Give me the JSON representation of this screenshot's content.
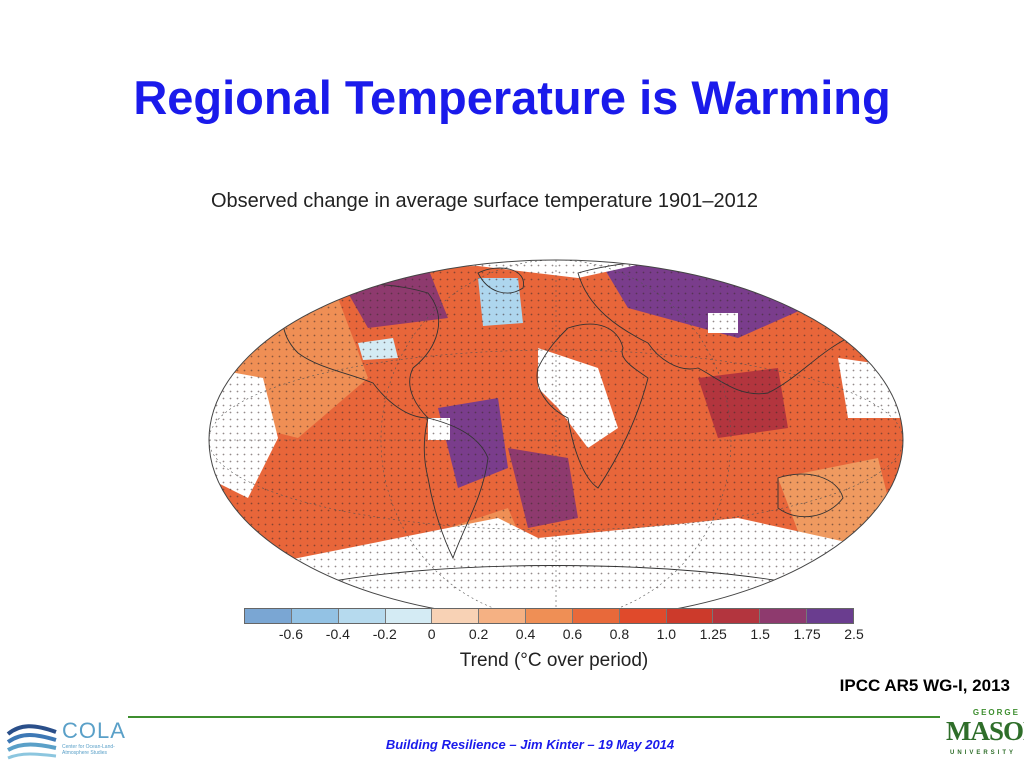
{
  "slide": {
    "title": "Regional Temperature is Warming",
    "citation": "IPCC AR5 WG-I, 2013",
    "footer": "Building Resilience – Jim Kinter – 19 May 2014"
  },
  "figure": {
    "title": "Observed change in average surface temperature 1901–2012",
    "scale_label": "Trend (°C over period)",
    "scale_ticks": [
      "-0.6",
      "-0.4",
      "-0.2",
      "0",
      "0.2",
      "0.4",
      "0.6",
      "0.8",
      "1.0",
      "1.25",
      "1.5",
      "1.75",
      "2.5"
    ],
    "swatch_colors": [
      "#7aa6d3",
      "#93c2e4",
      "#b6daee",
      "#d4ebf4",
      "#f8d2b5",
      "#f5b183",
      "#ef8f55",
      "#e8693a",
      "#e04a2b",
      "#cc3a2b",
      "#b3353e",
      "#8e3a6e",
      "#6a3d8f"
    ],
    "colors": {
      "land_warm": "#e85d32",
      "ocean_warm": "#ea7a45",
      "hot_spot": "#7a3d8c",
      "cool_spot": "#aed6ee",
      "no_data": "#ffffff"
    }
  },
  "logos": {
    "cola_name": "COLA",
    "cola_subtitle": "Center for Ocean-Land-Atmosphere Studies",
    "gmu_top": "GEORGE",
    "gmu_main": "MASON",
    "gmu_sub": "UNIVERSITY"
  }
}
